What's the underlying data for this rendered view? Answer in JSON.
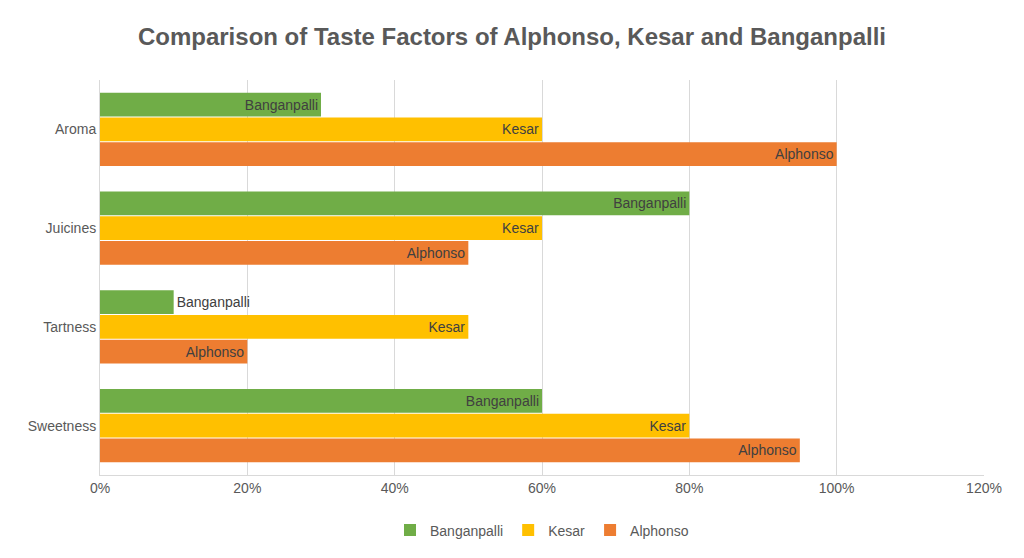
{
  "chart_data": {
    "type": "bar",
    "orientation": "horizontal",
    "title": "Comparison of Taste Factors of Alphonso, Kesar and Banganpalli",
    "categories": [
      "Sweetness",
      "Tartness",
      "Juicines",
      "Aroma"
    ],
    "series": [
      {
        "name": "Banganpalli",
        "color": "#70ad47",
        "values": [
          60,
          10,
          80,
          30
        ]
      },
      {
        "name": "Kesar",
        "color": "#ffc000",
        "values": [
          80,
          50,
          60,
          60
        ]
      },
      {
        "name": "Alphonso",
        "color": "#ed7d31",
        "values": [
          95,
          20,
          50,
          100
        ]
      }
    ],
    "xlim": [
      0,
      120
    ],
    "xticks": [
      {
        "value": 0,
        "label": "0%"
      },
      {
        "value": 20,
        "label": "20%"
      },
      {
        "value": 40,
        "label": "40%"
      },
      {
        "value": 60,
        "label": "60%"
      },
      {
        "value": 80,
        "label": "80%"
      },
      {
        "value": 100,
        "label": "100%"
      },
      {
        "value": 120,
        "label": "120%"
      }
    ],
    "grid": true,
    "legend": "bottom"
  }
}
